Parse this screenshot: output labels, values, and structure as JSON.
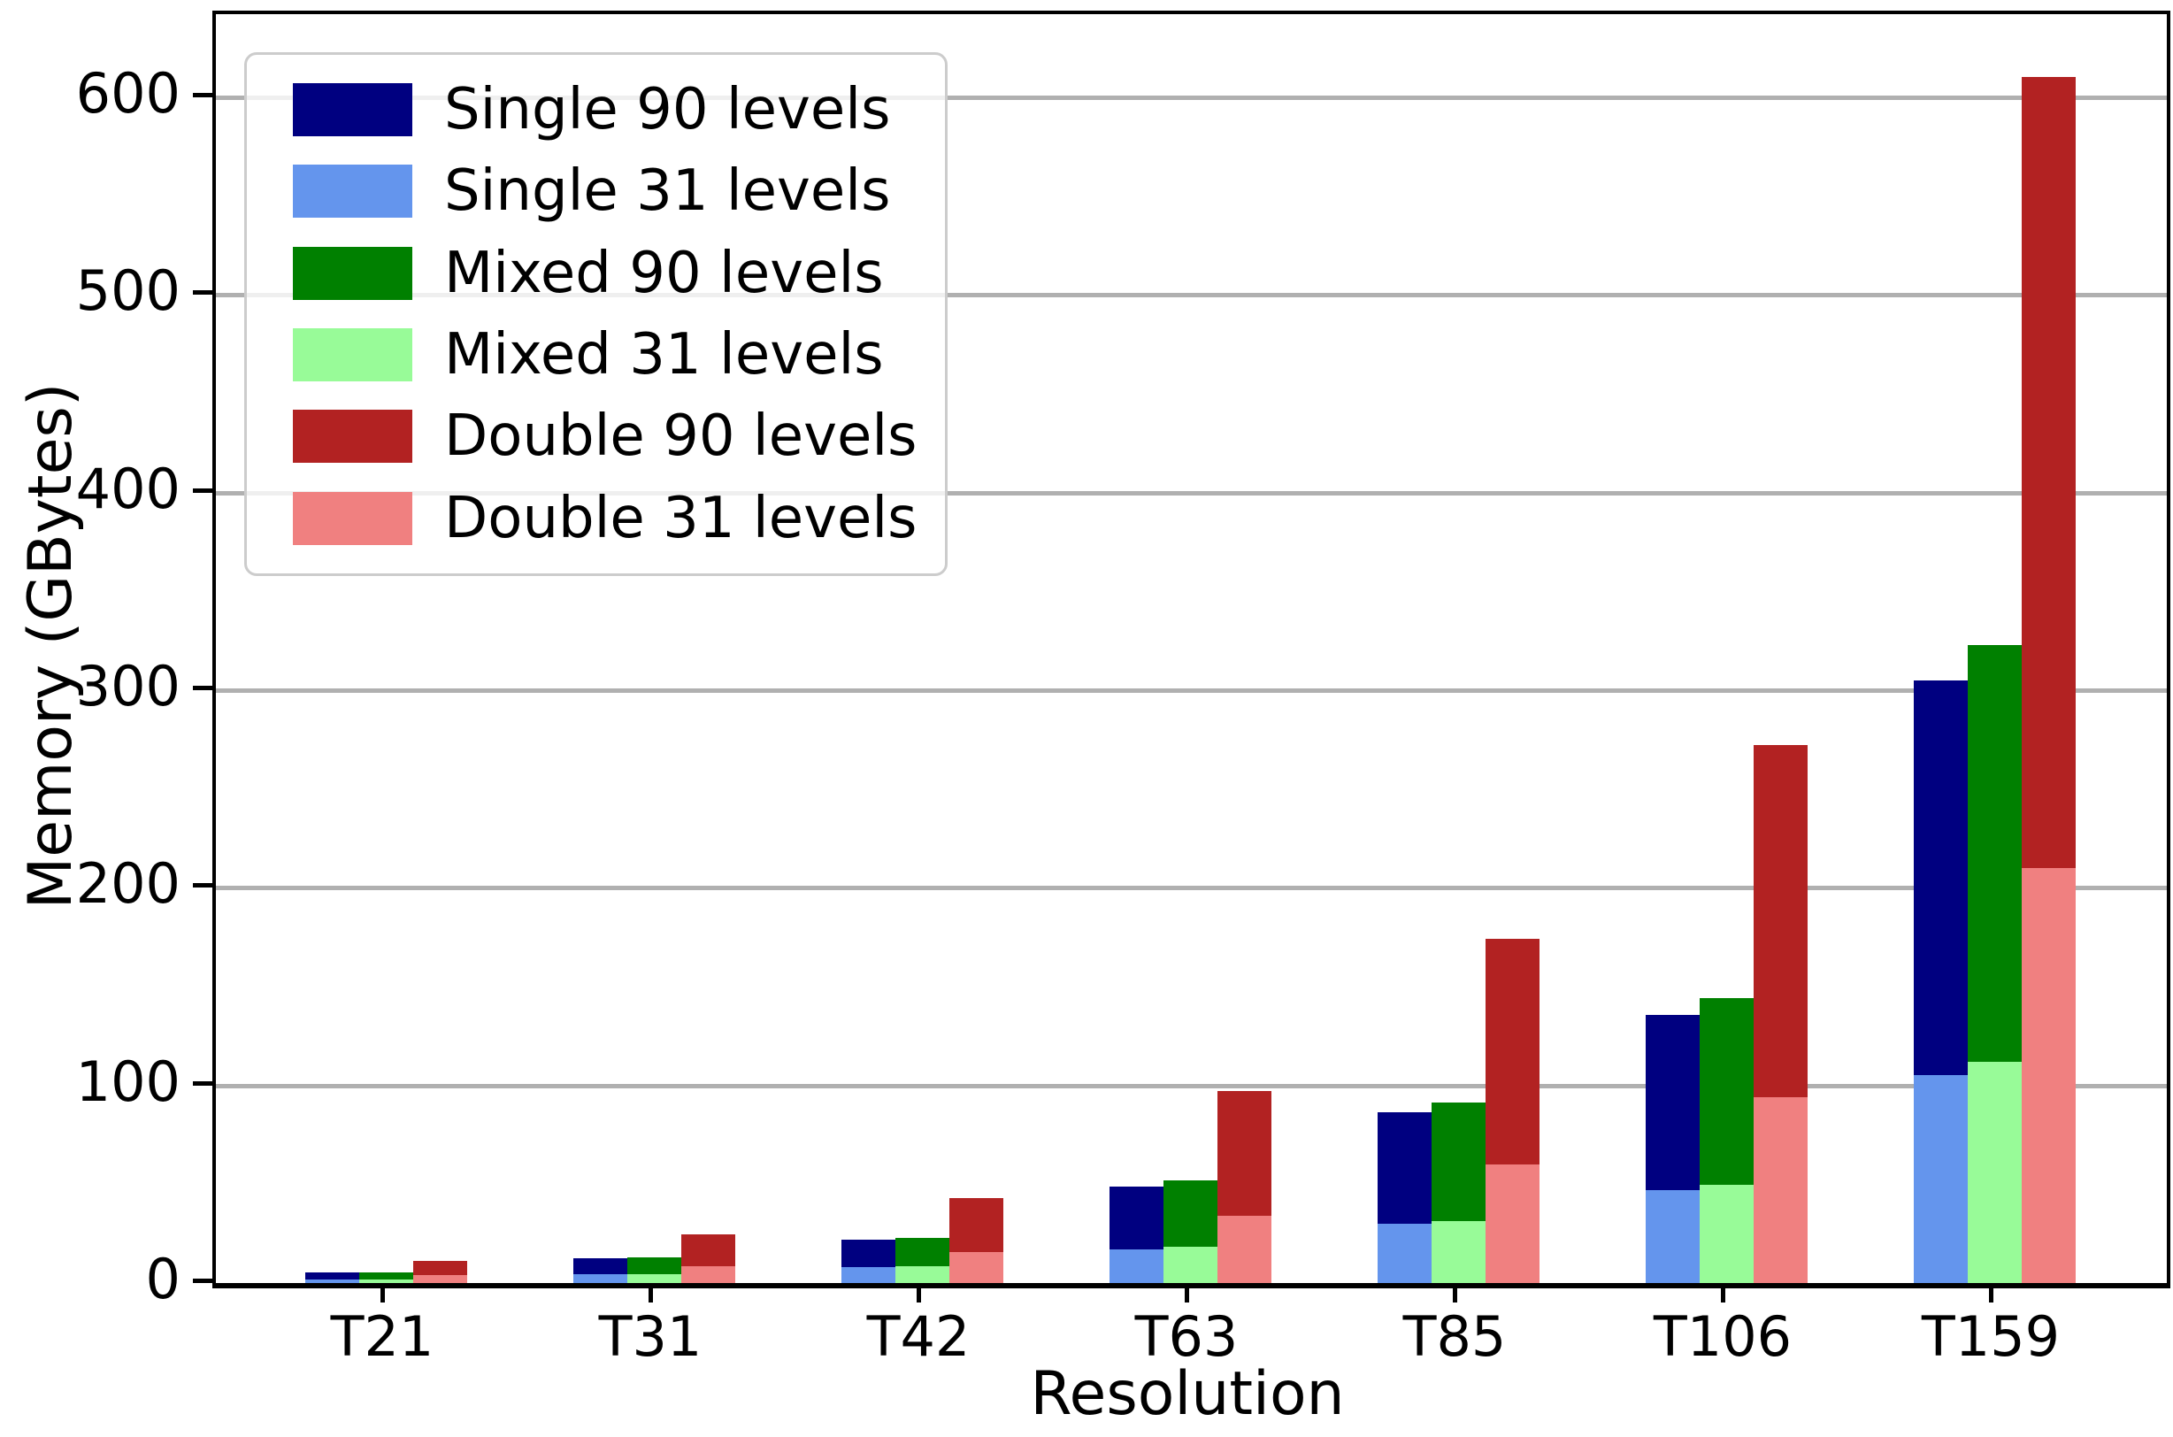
{
  "chart_data": {
    "type": "bar",
    "title": "",
    "xlabel": "Resolution",
    "ylabel": "Memory (GBytes)",
    "categories": [
      "T21",
      "T31",
      "T42",
      "T63",
      "T85",
      "T106",
      "T159"
    ],
    "series": [
      {
        "name": "Single 90 levels",
        "color": "#000080",
        "layer": "back",
        "column": 0,
        "values": [
          5.5,
          12.5,
          22,
          49,
          86.5,
          135.5,
          305
        ]
      },
      {
        "name": "Single 31 levels",
        "color": "#6495ED",
        "layer": "front",
        "column": 0,
        "values": [
          2,
          4.5,
          8,
          17,
          30,
          47,
          105
        ]
      },
      {
        "name": "Mixed 90 levels",
        "color": "#008000",
        "layer": "back",
        "column": 1,
        "values": [
          5.5,
          13,
          23,
          52,
          91.5,
          144,
          323
        ]
      },
      {
        "name": "Mixed 31 levels",
        "color": "#98FB98",
        "layer": "front",
        "column": 1,
        "values": [
          2,
          4.5,
          8.5,
          18.5,
          31.5,
          49.5,
          112
        ]
      },
      {
        "name": "Double 90 levels",
        "color": "#B22222",
        "layer": "back",
        "column": 2,
        "values": [
          11,
          24.5,
          43,
          97,
          174,
          272,
          610
        ]
      },
      {
        "name": "Double 31 levels",
        "color": "#F08080",
        "layer": "front",
        "column": 2,
        "values": [
          4,
          8.5,
          15.5,
          34,
          60,
          94,
          210
        ]
      }
    ],
    "yticks": [
      0,
      100,
      200,
      300,
      400,
      500,
      600
    ],
    "ylim": [
      0,
      642
    ],
    "grid": true,
    "gridline_color": "#b0b0b0",
    "legend_position": "upper left",
    "bar_layout": "three columns per category (Single, Mixed, Double); 31-level bar drawn in front of 90-level bar at same x",
    "axis_color": "#000000",
    "background_color": "#ffffff"
  }
}
